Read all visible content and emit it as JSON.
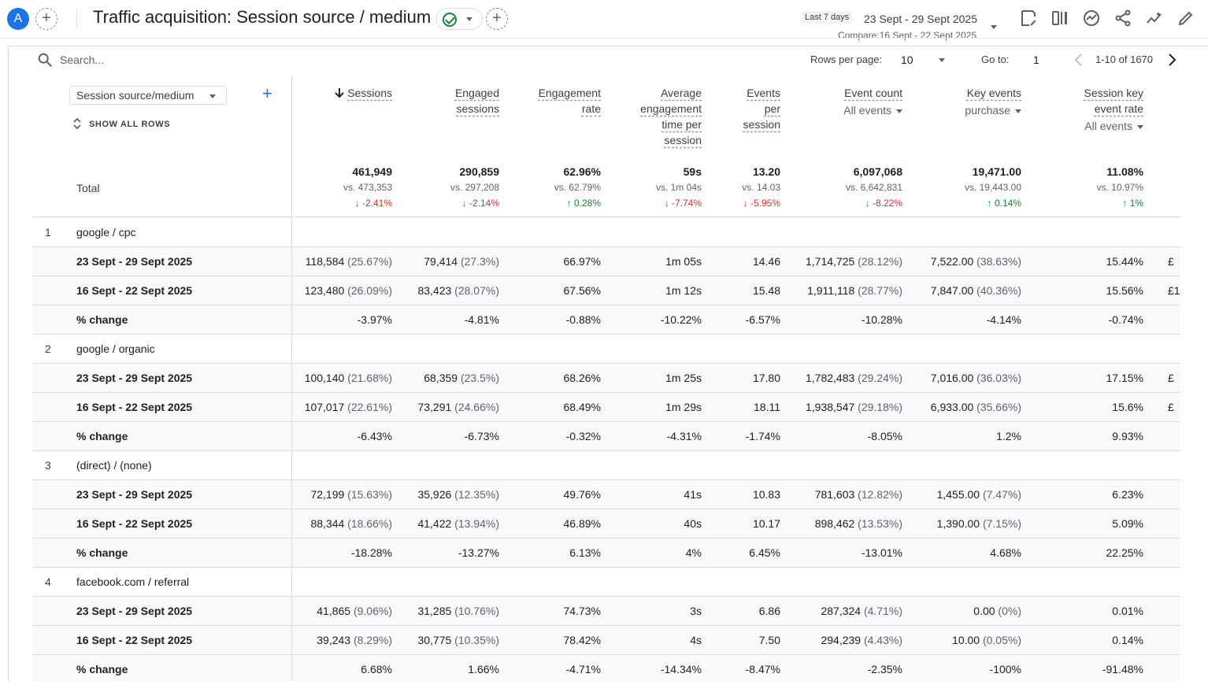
{
  "header": {
    "avatar_letter": "A",
    "title": "Traffic acquisition: Session source / medium",
    "date_chip": "Last 7 days",
    "date_range": "23 Sept - 29 Sept 2025",
    "compare_text": "Compare:16 Sept - 22 Sept 2025",
    "icons": [
      "add-comparison-icon",
      "check-circle-icon",
      "add-icon",
      "edit-report-icon",
      "compare-icon",
      "insights-icon",
      "share-icon",
      "trend-icon",
      "pencil-icon"
    ]
  },
  "toolbar": {
    "search_placeholder": "Search...",
    "rows_per_page_label": "Rows per page:",
    "rows_per_page_value": "10",
    "goto_label": "Go to:",
    "goto_value": "1",
    "pagination_text": "1-10 of 1670"
  },
  "table": {
    "dimension_label": "Session source/medium",
    "show_all_rows": "SHOW ALL ROWS",
    "total_label": "Total",
    "columns": [
      {
        "title_lines": [
          "Sessions"
        ],
        "sorted": true
      },
      {
        "title_lines": [
          "Engaged",
          "sessions"
        ]
      },
      {
        "title_lines": [
          "Engagement",
          "rate"
        ]
      },
      {
        "title_lines": [
          "Average",
          "engagement",
          "time per",
          "session"
        ]
      },
      {
        "title_lines": [
          "Events",
          "per",
          "session"
        ]
      },
      {
        "title_lines": [
          "Event count"
        ],
        "sub": "All events"
      },
      {
        "title_lines": [
          "Key events"
        ],
        "sub": "purchase"
      },
      {
        "title_lines": [
          "Session key",
          "event rate"
        ],
        "sub": "All events"
      }
    ],
    "totals": [
      {
        "value": "461,949",
        "vs": "vs. 473,353",
        "change": "-2.41%",
        "dir": "down"
      },
      {
        "value": "290,859",
        "vs": "vs. 297,208",
        "change": "-2.14%",
        "dir": "down"
      },
      {
        "value": "62.96%",
        "vs": "vs. 62.79%",
        "change": "0.28%",
        "dir": "up"
      },
      {
        "value": "59s",
        "vs": "vs. 1m 04s",
        "change": "-7.74%",
        "dir": "down"
      },
      {
        "value": "13.20",
        "vs": "vs. 14.03",
        "change": "-5.95%",
        "dir": "down"
      },
      {
        "value": "6,097,068",
        "vs": "vs. 6,642,831",
        "change": "-8.22%",
        "dir": "down"
      },
      {
        "value": "19,471.00",
        "vs": "vs. 19,443.00",
        "change": "0.14%",
        "dir": "up"
      },
      {
        "value": "11.08%",
        "vs": "vs. 10.97%",
        "change": "1%",
        "dir": "up"
      }
    ],
    "groups": [
      {
        "rank": "1",
        "name": "google / cpc",
        "rows": [
          {
            "label": "23 Sept - 29 Sept 2025",
            "cells": [
              [
                "118,584",
                "(25.67%)"
              ],
              [
                "79,414",
                "(27.3%)"
              ],
              [
                "66.97%"
              ],
              [
                "1m 05s"
              ],
              [
                "14.46"
              ],
              [
                "1,714,725",
                "(28.12%)"
              ],
              [
                "7,522.00",
                "(38.63%)"
              ],
              [
                "15.44%"
              ]
            ],
            "overflow": "£"
          },
          {
            "label": "16 Sept - 22 Sept 2025",
            "cells": [
              [
                "123,480",
                "(26.09%)"
              ],
              [
                "83,423",
                "(28.07%)"
              ],
              [
                "67.56%"
              ],
              [
                "1m 12s"
              ],
              [
                "15.48"
              ],
              [
                "1,911,118",
                "(28.77%)"
              ],
              [
                "7,847.00",
                "(40.36%)"
              ],
              [
                "15.56%"
              ]
            ],
            "overflow": "£1"
          },
          {
            "label": "% change",
            "cells": [
              [
                "-3.97%"
              ],
              [
                "-4.81%"
              ],
              [
                "-0.88%"
              ],
              [
                "-10.22%"
              ],
              [
                "-6.57%"
              ],
              [
                "-10.28%"
              ],
              [
                "-4.14%"
              ],
              [
                "-0.74%"
              ]
            ],
            "overflow": ""
          }
        ]
      },
      {
        "rank": "2",
        "name": "google / organic",
        "rows": [
          {
            "label": "23 Sept - 29 Sept 2025",
            "cells": [
              [
                "100,140",
                "(21.68%)"
              ],
              [
                "68,359",
                "(23.5%)"
              ],
              [
                "68.26%"
              ],
              [
                "1m 25s"
              ],
              [
                "17.80"
              ],
              [
                "1,782,483",
                "(29.24%)"
              ],
              [
                "7,016.00",
                "(36.03%)"
              ],
              [
                "17.15%"
              ]
            ],
            "overflow": "£"
          },
          {
            "label": "16 Sept - 22 Sept 2025",
            "cells": [
              [
                "107,017",
                "(22.61%)"
              ],
              [
                "73,291",
                "(24.66%)"
              ],
              [
                "68.49%"
              ],
              [
                "1m 29s"
              ],
              [
                "18.11"
              ],
              [
                "1,938,547",
                "(29.18%)"
              ],
              [
                "6,933.00",
                "(35.66%)"
              ],
              [
                "15.6%"
              ]
            ],
            "overflow": "£"
          },
          {
            "label": "% change",
            "cells": [
              [
                "-6.43%"
              ],
              [
                "-6.73%"
              ],
              [
                "-0.32%"
              ],
              [
                "-4.31%"
              ],
              [
                "-1.74%"
              ],
              [
                "-8.05%"
              ],
              [
                "1.2%"
              ],
              [
                "9.93%"
              ]
            ],
            "overflow": ""
          }
        ]
      },
      {
        "rank": "3",
        "name": "(direct) / (none)",
        "rows": [
          {
            "label": "23 Sept - 29 Sept 2025",
            "cells": [
              [
                "72,199",
                "(15.63%)"
              ],
              [
                "35,926",
                "(12.35%)"
              ],
              [
                "49.76%"
              ],
              [
                "41s"
              ],
              [
                "10.83"
              ],
              [
                "781,603",
                "(12.82%)"
              ],
              [
                "1,455.00",
                "(7.47%)"
              ],
              [
                "6.23%"
              ]
            ],
            "overflow": ""
          },
          {
            "label": "16 Sept - 22 Sept 2025",
            "cells": [
              [
                "88,344",
                "(18.66%)"
              ],
              [
                "41,422",
                "(13.94%)"
              ],
              [
                "46.89%"
              ],
              [
                "40s"
              ],
              [
                "10.17"
              ],
              [
                "898,462",
                "(13.53%)"
              ],
              [
                "1,390.00",
                "(7.15%)"
              ],
              [
                "5.09%"
              ]
            ],
            "overflow": ""
          },
          {
            "label": "% change",
            "cells": [
              [
                "-18.28%"
              ],
              [
                "-13.27%"
              ],
              [
                "6.13%"
              ],
              [
                "4%"
              ],
              [
                "6.45%"
              ],
              [
                "-13.01%"
              ],
              [
                "4.68%"
              ],
              [
                "22.25%"
              ]
            ],
            "overflow": ""
          }
        ]
      },
      {
        "rank": "4",
        "name": "facebook.com / referral",
        "rows": [
          {
            "label": "23 Sept - 29 Sept 2025",
            "cells": [
              [
                "41,865",
                "(9.06%)"
              ],
              [
                "31,285",
                "(10.76%)"
              ],
              [
                "74.73%"
              ],
              [
                "3s"
              ],
              [
                "6.86"
              ],
              [
                "287,324",
                "(4.71%)"
              ],
              [
                "0.00",
                "(0%)"
              ],
              [
                "0.01%"
              ]
            ],
            "overflow": ""
          },
          {
            "label": "16 Sept - 22 Sept 2025",
            "cells": [
              [
                "39,243",
                "(8.29%)"
              ],
              [
                "30,775",
                "(10.35%)"
              ],
              [
                "78.42%"
              ],
              [
                "4s"
              ],
              [
                "7.50"
              ],
              [
                "294,239",
                "(4.43%)"
              ],
              [
                "10.00",
                "(0.05%)"
              ],
              [
                "0.14%"
              ]
            ],
            "overflow": ""
          },
          {
            "label": "% change",
            "cells": [
              [
                "6.68%"
              ],
              [
                "1.66%"
              ],
              [
                "-4.71%"
              ],
              [
                "-14.34%"
              ],
              [
                "-8.47%"
              ],
              [
                "-2.35%"
              ],
              [
                "-100%"
              ],
              [
                "-91.48%"
              ]
            ],
            "overflow": ""
          }
        ]
      }
    ]
  }
}
